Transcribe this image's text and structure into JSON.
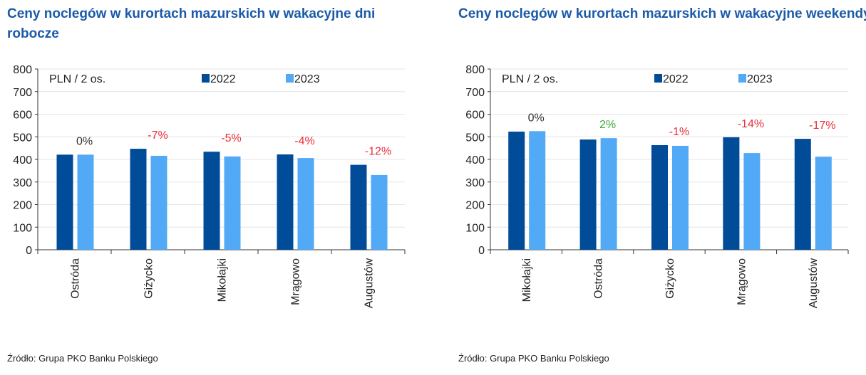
{
  "chart_data": [
    {
      "type": "bar",
      "title": "Ceny noclegów w kurortach mazurskich w wakacyjne dni robocze",
      "unit_label": "PLN / 2 os.",
      "categories": [
        "Ostróda",
        "Giżycko",
        "Mikołajki",
        "Mrągowo",
        "Augustów"
      ],
      "series": [
        {
          "name": "2022",
          "color": "#004c99",
          "values": [
            421,
            447,
            434,
            422,
            376
          ]
        },
        {
          "name": "2023",
          "color": "#52a9f5",
          "values": [
            421,
            416,
            413,
            406,
            331
          ]
        }
      ],
      "annotations": [
        "0%",
        "-7%",
        "-5%",
        "-4%",
        "-12%"
      ],
      "annotation_colors": [
        "#333333",
        "#e8303a",
        "#e8303a",
        "#e8303a",
        "#e8303a"
      ],
      "ylim": [
        0,
        800
      ],
      "yticks": [
        0,
        100,
        200,
        300,
        400,
        500,
        600,
        700,
        800
      ],
      "source": "Źródło: Grupa PKO Banku Polskiego"
    },
    {
      "type": "bar",
      "title": "Ceny noclegów w kurortach mazurskich w wakacyjne weekendy",
      "unit_label": "PLN / 2 os.",
      "categories": [
        "Mikołajki",
        "Ostróda",
        "Giżycko",
        "Mrągowo",
        "Augustów"
      ],
      "series": [
        {
          "name": "2022",
          "color": "#004c99",
          "values": [
            523,
            488,
            463,
            498,
            491
          ]
        },
        {
          "name": "2023",
          "color": "#52a9f5",
          "values": [
            525,
            494,
            460,
            428,
            412
          ]
        }
      ],
      "annotations": [
        "0%",
        "2%",
        "-1%",
        "-14%",
        "-17%"
      ],
      "annotation_colors": [
        "#333333",
        "#3aaa35",
        "#e8303a",
        "#e8303a",
        "#e8303a"
      ],
      "ylim": [
        0,
        800
      ],
      "yticks": [
        0,
        100,
        200,
        300,
        400,
        500,
        600,
        700,
        800
      ],
      "source": "Źródło: Grupa PKO Banku Polskiego"
    }
  ]
}
